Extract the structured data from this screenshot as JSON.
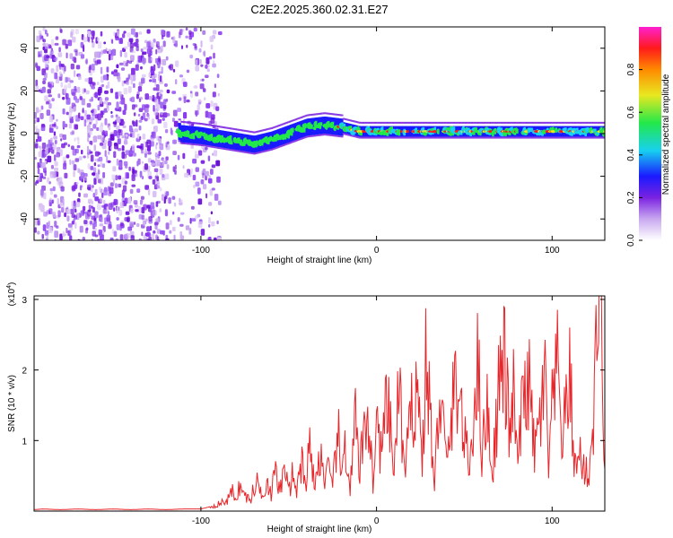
{
  "chart_data": [
    {
      "type": "heatmap",
      "title": "C2E2.2025.360.02.31.E27",
      "xlabel": "Height of straight line (km)",
      "ylabel": "Frequency (Hz)",
      "xlim": [
        -195,
        130
      ],
      "ylim": [
        -50,
        50
      ],
      "xticks": [
        -100,
        0,
        100
      ],
      "yticks": [
        -40,
        -20,
        0,
        20,
        40
      ],
      "colorbar": {
        "label": "Normalized spectral amplitude",
        "range": [
          0,
          1
        ],
        "ticks": [
          "0.0",
          "0.2",
          "0.4",
          "0.6",
          "0.8"
        ]
      },
      "ridge_center_freq": [
        [
          -112,
          0
        ],
        [
          -100,
          -1
        ],
        [
          -85,
          -3
        ],
        [
          -70,
          -5
        ],
        [
          -60,
          -3
        ],
        [
          -50,
          0
        ],
        [
          -40,
          3
        ],
        [
          -30,
          4
        ],
        [
          -20,
          3
        ],
        [
          -10,
          1
        ],
        [
          0,
          1
        ],
        [
          50,
          1
        ],
        [
          100,
          1
        ],
        [
          130,
          1
        ]
      ]
    },
    {
      "type": "line",
      "xlabel": "Height of straight line (km)",
      "ylabel": "SNR (10 * v/v)",
      "yscale_label": "(x10^4)",
      "xlim": [
        -195,
        130
      ],
      "ylim": [
        0,
        3.05
      ],
      "xticks": [
        -100,
        0,
        100
      ],
      "yticks": [
        1,
        2,
        3
      ],
      "series": [
        {
          "color": "#e8262a",
          "x": [
            -195,
            -190,
            -180,
            -170,
            -160,
            -150,
            -140,
            -130,
            -120,
            -110,
            -100,
            -92,
            -88,
            -85,
            -82,
            -80,
            -78,
            -75,
            -72,
            -70,
            -68,
            -65,
            -62,
            -60,
            -58,
            -55,
            -52,
            -50,
            -48,
            -45,
            -42,
            -40,
            -38,
            -35,
            -32,
            -30,
            -28,
            -25,
            -22,
            -20,
            -18,
            -15,
            -12,
            -10,
            -8,
            -5,
            -2,
            0,
            3,
            6,
            10,
            13,
            16,
            20,
            23,
            26,
            28,
            30,
            33,
            36,
            40,
            43,
            46,
            50,
            53,
            56,
            58,
            60,
            63,
            66,
            70,
            73,
            76,
            78,
            80,
            83,
            86,
            90,
            93,
            96,
            98,
            100,
            103,
            106,
            110,
            113,
            116,
            119,
            121,
            123,
            124,
            125,
            126,
            127,
            128,
            129,
            130
          ],
          "y": [
            0.02,
            0.03,
            0.02,
            0.03,
            0.02,
            0.03,
            0.02,
            0.03,
            0.02,
            0.03,
            0.03,
            0.08,
            0.12,
            0.15,
            0.28,
            0.18,
            0.35,
            0.22,
            0.15,
            0.3,
            0.4,
            0.25,
            0.45,
            0.2,
            0.55,
            0.3,
            0.6,
            0.25,
            0.5,
            0.3,
            0.8,
            0.35,
            1.05,
            0.3,
            0.9,
            0.45,
            0.6,
            0.3,
            1.2,
            0.4,
            1.0,
            0.3,
            1.3,
            0.5,
            0.9,
            1.5,
            0.4,
            1.2,
            0.8,
            1.55,
            0.6,
            1.8,
            0.5,
            1.4,
            1.9,
            0.7,
            2.0,
            1.6,
            0.3,
            1.8,
            0.6,
            1.4,
            1.9,
            1.0,
            0.6,
            1.7,
            2.1,
            0.8,
            1.5,
            0.5,
            1.9,
            2.1,
            1.0,
            1.7,
            0.7,
            1.4,
            2.0,
            0.8,
            1.3,
            1.8,
            0.6,
            1.4,
            2.0,
            1.0,
            1.9,
            0.6,
            0.8,
            0.55,
            0.5,
            1.2,
            1.4,
            2.5,
            2.9,
            3.0,
            2.7,
            1.7,
            0.6
          ]
        }
      ]
    }
  ]
}
